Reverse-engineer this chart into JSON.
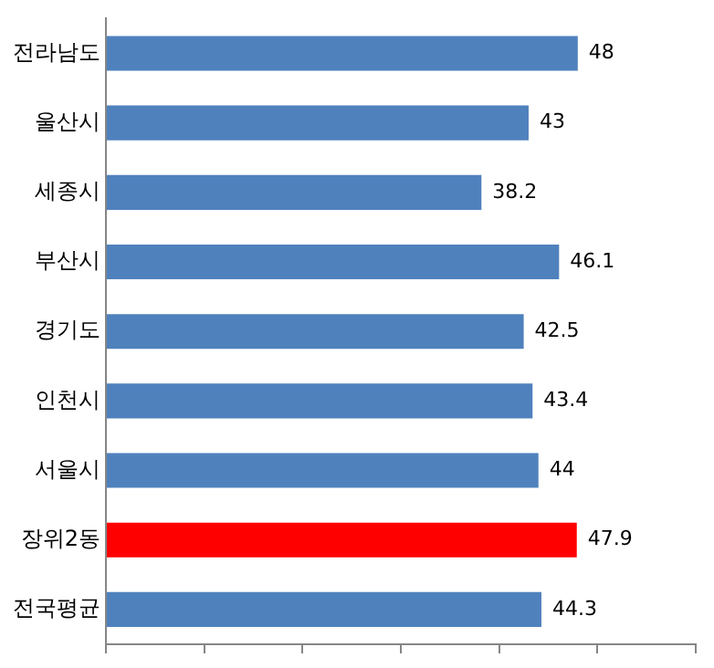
{
  "chart_data": {
    "type": "bar",
    "orientation": "horizontal",
    "categories": [
      "전라남도",
      "울산시",
      "세종시",
      "부산시",
      "경기도",
      "인천시",
      "서울시",
      "장위2동",
      "전국평균"
    ],
    "values": [
      48,
      43,
      38.2,
      46.1,
      42.5,
      43.4,
      44,
      47.9,
      44.3
    ],
    "colors": [
      "#4f81bd",
      "#4f81bd",
      "#4f81bd",
      "#4f81bd",
      "#4f81bd",
      "#4f81bd",
      "#4f81bd",
      "#ff0000",
      "#4f81bd"
    ],
    "xlim": [
      0,
      60
    ],
    "xticks": [
      {
        "value": 0,
        "label": null
      },
      {
        "value": 10,
        "label": null
      },
      {
        "value": 20,
        "label": null
      },
      {
        "value": 30,
        "label": null
      },
      {
        "value": 40,
        "label": null
      },
      {
        "value": 50,
        "label": null
      },
      {
        "value": 60,
        "label": null
      }
    ],
    "tick_labels": "y",
    "grid": false,
    "data_labels": true,
    "legend": false
  }
}
